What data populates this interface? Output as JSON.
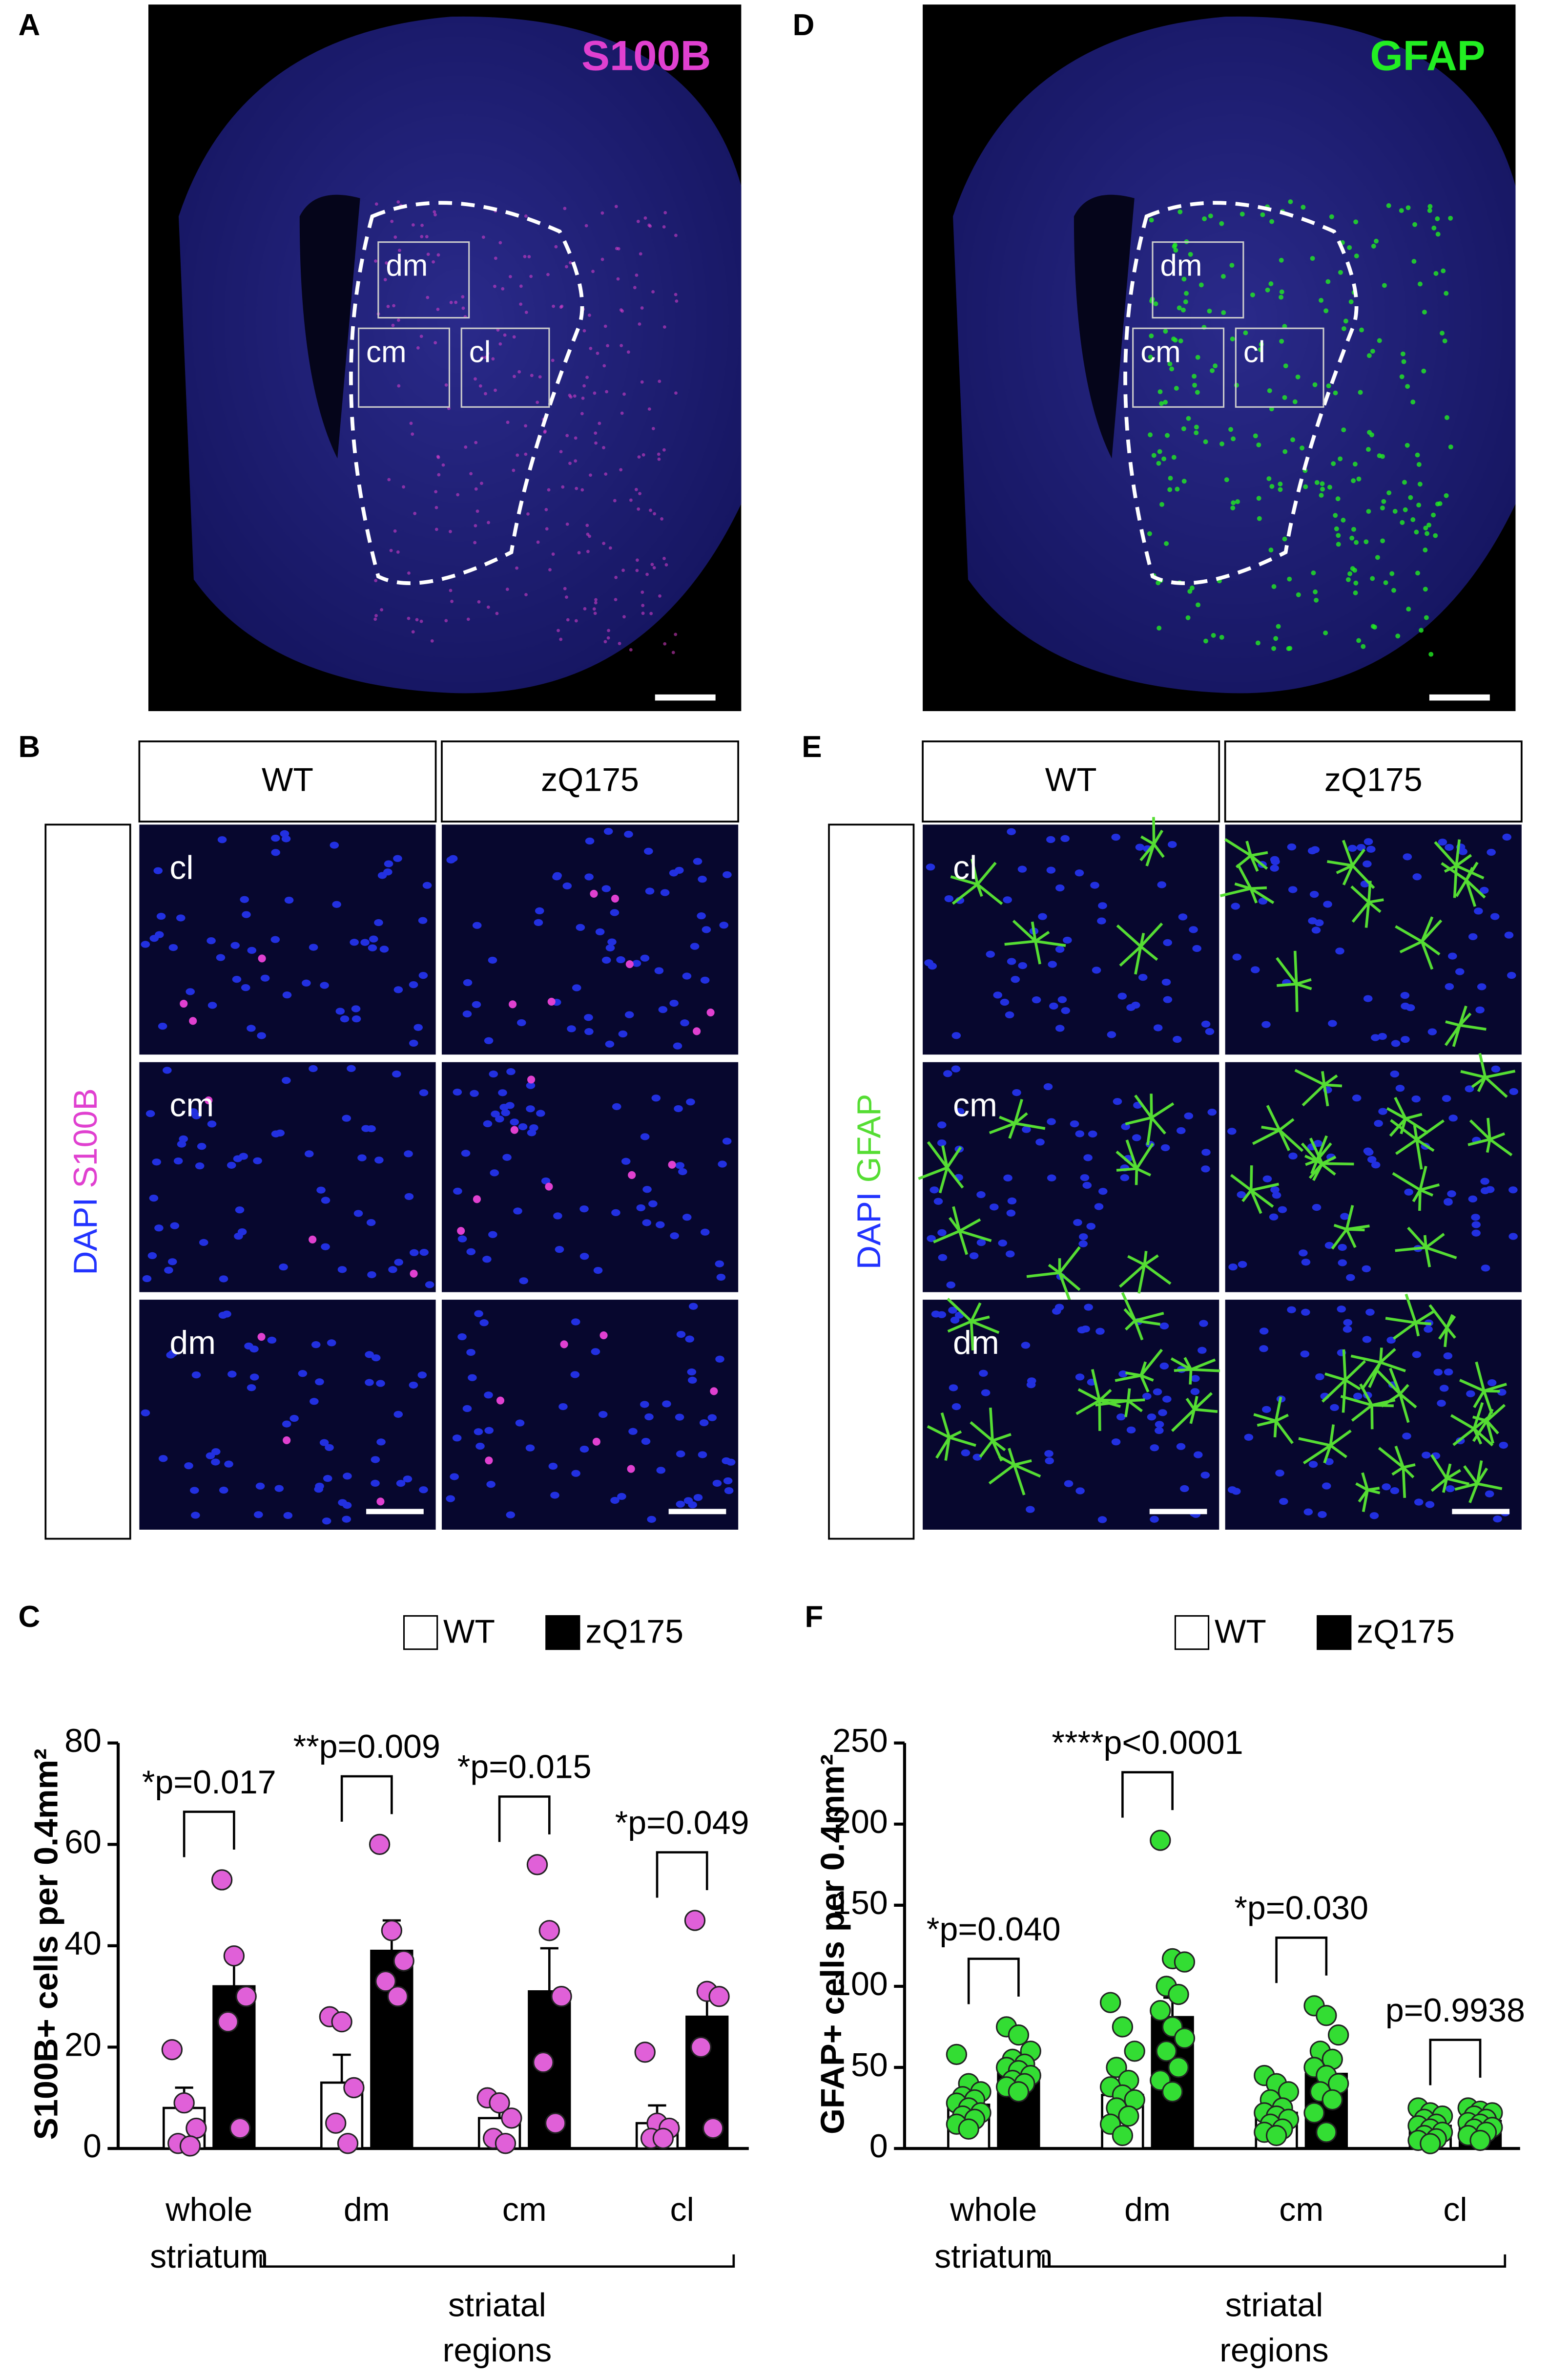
{
  "images": [
    {
      "letter": "A",
      "stain": "S100B",
      "stain_color": "#e040d0",
      "regions": [
        "dm",
        "cm",
        "cl"
      ]
    },
    {
      "letter": "D",
      "stain": "GFAP",
      "stain_color": "#22ee22",
      "regions": [
        "dm",
        "cm",
        "cl"
      ]
    }
  ],
  "grids": [
    {
      "letter": "B",
      "columns": [
        "WT",
        "zQ175"
      ],
      "rows": [
        "cl",
        "cm",
        "dm"
      ],
      "stain_label": [
        "DAPI",
        "S100B"
      ],
      "stain_colors": [
        "#2233ff",
        "#e040d0"
      ]
    },
    {
      "letter": "E",
      "columns": [
        "WT",
        "zQ175"
      ],
      "rows": [
        "cl",
        "cm",
        "dm"
      ],
      "stain_label": [
        "DAPI",
        "GFAP"
      ],
      "stain_colors": [
        "#2233ff",
        "#55dd33"
      ]
    }
  ],
  "chart_data": [
    {
      "type": "bar",
      "letter": "C",
      "y_label": "S100B+ cells per 0.4mm²",
      "categories": [
        "whole striatum",
        "dm",
        "cm",
        "cl"
      ],
      "group_label": "striatal regions",
      "ylim": [
        0,
        80
      ],
      "yticks": [
        0,
        20,
        40,
        60,
        80
      ],
      "legend": "top-right",
      "point_color": "#e060d8",
      "annotations": [
        "*p=0.017",
        "**p=0.009",
        "*p=0.015",
        "*p=0.049"
      ],
      "series": [
        {
          "name": "WT",
          "color": "#ffffff",
          "values": [
            8,
            13,
            6,
            5
          ],
          "errors": [
            4,
            5.5,
            2.5,
            3.5
          ],
          "points": [
            [
              19.5,
              9,
              4,
              1,
              0.5
            ],
            [
              26,
              25,
              12,
              5,
              1
            ],
            [
              10,
              9,
              6,
              2,
              1
            ],
            [
              19,
              5,
              4,
              2,
              2
            ]
          ]
        },
        {
          "name": "zQ175",
          "color": "#000000",
          "values": [
            32,
            39,
            31,
            26
          ],
          "errors": [
            6.5,
            6,
            8.5,
            6
          ],
          "points": [
            [
              53,
              38,
              30,
              25,
              4
            ],
            [
              60,
              43,
              37,
              33,
              30
            ],
            [
              56,
              43,
              30,
              17,
              5
            ],
            [
              45,
              31,
              30,
              20,
              4
            ]
          ]
        }
      ]
    },
    {
      "type": "bar",
      "letter": "F",
      "y_label": "GFAP+ cells per 0.4mm²",
      "categories": [
        "whole striatum",
        "dm",
        "cm",
        "cl"
      ],
      "group_label": "striatal regions",
      "ylim": [
        0,
        250
      ],
      "yticks": [
        0,
        50,
        100,
        150,
        200,
        250
      ],
      "legend": "top-right",
      "point_color": "#33dd33",
      "annotations": [
        "*p=0.040",
        "****p<0.0001",
        "*p=0.030",
        "p=0.9938"
      ],
      "series": [
        {
          "name": "WT",
          "color": "#ffffff",
          "values": [
            27,
            33,
            22,
            14
          ],
          "errors": [
            3,
            6,
            3,
            2
          ],
          "points": [
            [
              58,
              40,
              35,
              32,
              30,
              28,
              25,
              22,
              20,
              18,
              15,
              12
            ],
            [
              90,
              75,
              60,
              50,
              42,
              38,
              33,
              30,
              25,
              20,
              15,
              8
            ],
            [
              45,
              40,
              35,
              30,
              25,
              22,
              20,
              18,
              15,
              12,
              10,
              8
            ],
            [
              25,
              22,
              20,
              18,
              15,
              14,
              12,
              10,
              8,
              6,
              5,
              3
            ]
          ]
        },
        {
          "name": "zQ175",
          "color": "#000000",
          "values": [
            48,
            81,
            46,
            17
          ],
          "errors": [
            4,
            12,
            6,
            2
          ],
          "points": [
            [
              75,
              70,
              60,
              55,
              52,
              50,
              48,
              45,
              42,
              40,
              38,
              35
            ],
            [
              190,
              117,
              115,
              100,
              95,
              85,
              75,
              68,
              60,
              50,
              42,
              35
            ],
            [
              88,
              82,
              70,
              60,
              55,
              50,
              45,
              40,
              35,
              30,
              22,
              10
            ],
            [
              25,
              23,
              22,
              20,
              18,
              16,
              15,
              13,
              12,
              10,
              8,
              5
            ]
          ]
        }
      ]
    }
  ]
}
